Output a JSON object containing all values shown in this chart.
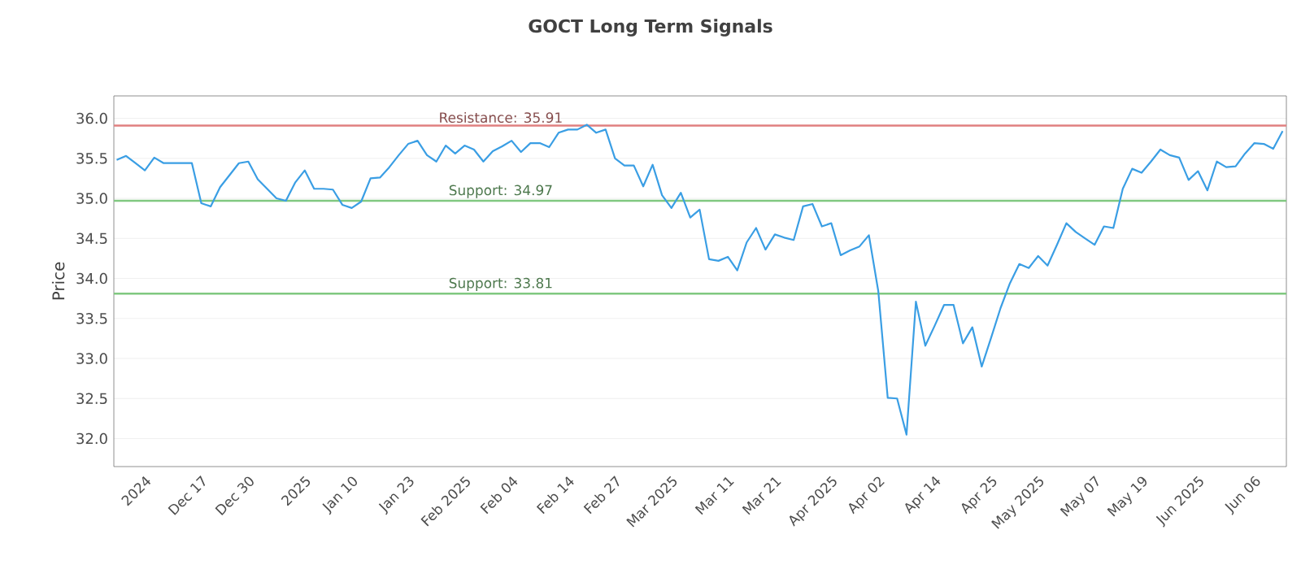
{
  "chart_data": {
    "type": "line",
    "title": "GOCT Long Term Signals",
    "ylabel": "Price",
    "categories": [
      null,
      null,
      null,
      "2024",
      null,
      null,
      null,
      null,
      null,
      "Dec 17",
      null,
      null,
      null,
      null,
      "Dec 30",
      null,
      null,
      null,
      null,
      null,
      "2025",
      null,
      null,
      null,
      null,
      "Jan 10",
      null,
      null,
      null,
      null,
      null,
      "Jan 23",
      null,
      null,
      null,
      null,
      null,
      "Feb 2025",
      null,
      null,
      null,
      null,
      "Feb 04",
      null,
      null,
      null,
      null,
      null,
      "Feb 14",
      null,
      null,
      null,
      null,
      "Feb 27",
      null,
      null,
      null,
      null,
      null,
      "Mar 2025",
      null,
      null,
      null,
      null,
      null,
      "Mar 11",
      null,
      null,
      null,
      null,
      "Mar 21",
      null,
      null,
      null,
      null,
      null,
      "Apr 2025",
      null,
      null,
      null,
      null,
      "Apr 02",
      null,
      null,
      null,
      null,
      null,
      "Apr 14",
      null,
      null,
      null,
      null,
      null,
      "Apr 25",
      null,
      null,
      null,
      null,
      "May 2025",
      null,
      null,
      null,
      null,
      null,
      "May 07",
      null,
      null,
      null,
      null,
      "May 19",
      null,
      null,
      null,
      null,
      null,
      "Jun 2025",
      null,
      null,
      null,
      null,
      null,
      "Jun 06",
      null,
      null,
      null
    ],
    "series": [
      {
        "color": "#3a9ee4",
        "values": [
          35.48,
          35.53,
          35.44,
          35.35,
          35.51,
          35.44,
          35.44,
          35.44,
          35.44,
          34.94,
          34.9,
          35.14,
          35.29,
          35.44,
          35.46,
          35.24,
          35.12,
          35.0,
          34.97,
          35.2,
          35.35,
          35.12,
          35.12,
          35.11,
          34.92,
          34.88,
          34.96,
          35.25,
          35.26,
          35.39,
          35.54,
          35.68,
          35.72,
          35.54,
          35.46,
          35.66,
          35.56,
          35.66,
          35.61,
          35.46,
          35.59,
          35.65,
          35.72,
          35.58,
          35.69,
          35.69,
          35.64,
          35.82,
          35.86,
          35.86,
          35.92,
          35.82,
          35.86,
          35.5,
          35.41,
          35.41,
          35.15,
          35.42,
          35.04,
          34.88,
          35.07,
          34.76,
          34.86,
          34.24,
          34.22,
          34.27,
          34.1,
          34.45,
          34.63,
          34.36,
          34.55,
          34.51,
          34.48,
          34.9,
          34.93,
          34.65,
          34.69,
          34.29,
          34.35,
          34.4,
          34.54,
          33.84,
          32.51,
          32.5,
          32.05,
          33.71,
          33.16,
          33.41,
          33.67,
          33.67,
          33.19,
          33.39,
          32.9,
          33.26,
          33.63,
          33.94,
          34.18,
          34.13,
          34.28,
          34.16,
          34.42,
          34.69,
          34.58,
          34.5,
          34.42,
          34.65,
          34.63,
          35.12,
          35.37,
          35.32,
          35.46,
          35.61,
          35.54,
          35.51,
          35.23,
          35.34,
          35.1,
          35.46,
          35.39,
          35.4,
          35.56,
          35.69,
          35.68,
          35.62,
          35.84
        ]
      }
    ],
    "ylim": [
      31.65,
      36.28
    ],
    "yticks": [
      {
        "value": 32,
        "label": "32.0"
      },
      {
        "value": 32.5,
        "label": "32.5"
      },
      {
        "value": 33,
        "label": "33.0"
      },
      {
        "value": 33.5,
        "label": "33.5"
      },
      {
        "value": 34,
        "label": "34.0"
      },
      {
        "value": 34.5,
        "label": "34.5"
      },
      {
        "value": 35,
        "label": "35.0"
      },
      {
        "value": 35.5,
        "label": "35.5"
      },
      {
        "value": 36,
        "label": "36.0"
      }
    ],
    "grid": "y",
    "ref_lines": [
      {
        "axis": "y",
        "value": 35.91,
        "label": "Resistance: 35.91",
        "color": "#e08080"
      },
      {
        "axis": "y",
        "value": 34.97,
        "label": "Support: 34.97",
        "color": "#80c880"
      },
      {
        "axis": "y",
        "value": 33.81,
        "label": "Support: 33.81",
        "color": "#80c880"
      }
    ]
  }
}
